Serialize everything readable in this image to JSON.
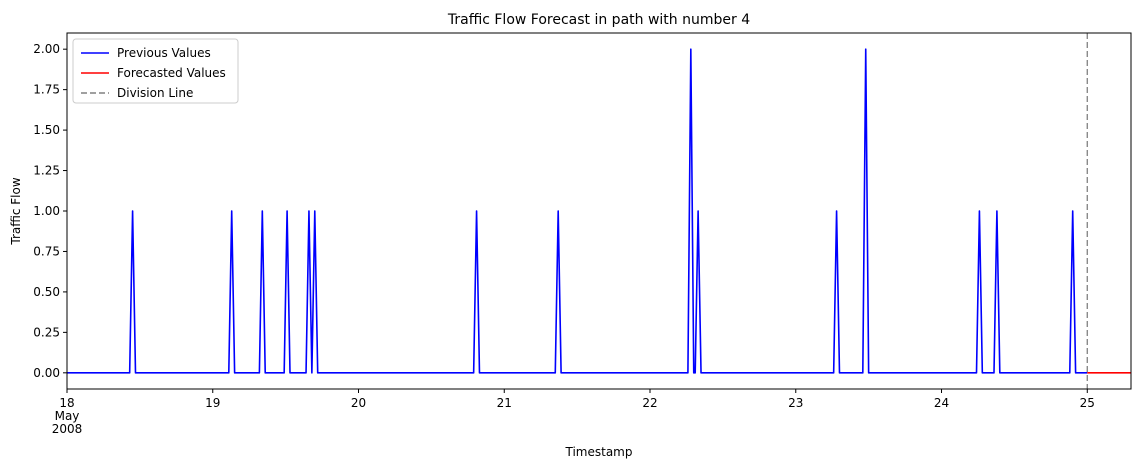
{
  "chart_data": {
    "type": "line",
    "title": "Traffic Flow Forecast in path with number 4",
    "xlabel": "Timestamp",
    "ylabel": "Traffic Flow",
    "x_range_days": [
      18.0,
      25.3
    ],
    "ylim": [
      -0.1,
      2.1
    ],
    "yticks": [
      "0.00",
      "0.25",
      "0.50",
      "0.75",
      "1.00",
      "1.25",
      "1.50",
      "1.75",
      "2.00"
    ],
    "ytick_values": [
      0,
      0.25,
      0.5,
      0.75,
      1.0,
      1.25,
      1.5,
      1.75,
      2.0
    ],
    "xticks": [
      {
        "day": 18,
        "lines": [
          "18",
          "May",
          "2008"
        ]
      },
      {
        "day": 19,
        "lines": [
          "19"
        ]
      },
      {
        "day": 20,
        "lines": [
          "20"
        ]
      },
      {
        "day": 21,
        "lines": [
          "21"
        ]
      },
      {
        "day": 22,
        "lines": [
          "22"
        ]
      },
      {
        "day": 23,
        "lines": [
          "23"
        ]
      },
      {
        "day": 24,
        "lines": [
          "24"
        ]
      },
      {
        "day": 25,
        "lines": [
          "25"
        ]
      }
    ],
    "grid": false,
    "legend_position": "top-left",
    "series": [
      {
        "name": "Previous Values",
        "color": "#0000ff",
        "baseline": 0,
        "x_start": 18.0,
        "x_end": 25.0,
        "spikes": [
          {
            "x": 18.45,
            "y": 1
          },
          {
            "x": 19.13,
            "y": 1
          },
          {
            "x": 19.34,
            "y": 1
          },
          {
            "x": 19.51,
            "y": 1
          },
          {
            "x": 19.66,
            "y": 1
          },
          {
            "x": 19.7,
            "y": 1
          },
          {
            "x": 20.81,
            "y": 1
          },
          {
            "x": 21.37,
            "y": 1
          },
          {
            "x": 22.28,
            "y": 2
          },
          {
            "x": 22.33,
            "y": 1
          },
          {
            "x": 23.28,
            "y": 1
          },
          {
            "x": 23.48,
            "y": 2
          },
          {
            "x": 24.26,
            "y": 1
          },
          {
            "x": 24.38,
            "y": 1
          },
          {
            "x": 24.9,
            "y": 1
          }
        ]
      },
      {
        "name": "Forecasted Values",
        "color": "#ff0000",
        "x": [
          25.0,
          25.3
        ],
        "y": [
          0,
          0
        ]
      },
      {
        "name": "Division Line",
        "color": "#808080",
        "style": "dashed",
        "x": 25.0
      }
    ]
  }
}
